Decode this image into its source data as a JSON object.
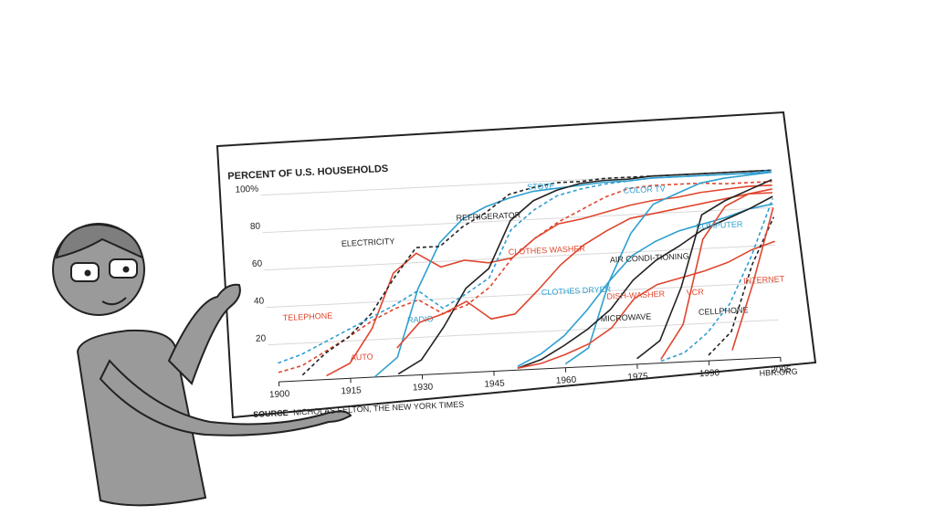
{
  "chart_data": {
    "type": "line",
    "title": "PERCENT OF U.S. HOUSEHOLDS",
    "source_label": "SOURCE",
    "source": "NICHOLAS FELTON, THE NEW YORK TIMES",
    "credit": "HBR.ORG",
    "x": [
      1900,
      1905,
      1910,
      1915,
      1920,
      1925,
      1930,
      1935,
      1940,
      1945,
      1950,
      1955,
      1960,
      1965,
      1970,
      1975,
      1980,
      1985,
      1990,
      1995,
      2000,
      2005
    ],
    "xlim": [
      1900,
      2005
    ],
    "xticks": [
      1900,
      1915,
      1930,
      1945,
      1960,
      1975,
      1990,
      2005
    ],
    "ylim": [
      0,
      100
    ],
    "yticks": [
      20,
      40,
      60,
      80,
      {
        "value": 100,
        "label": "100%"
      }
    ],
    "grid": true,
    "series": [
      {
        "name": "TELEPHONE",
        "color": "#e0462e",
        "dash": true,
        "values": [
          5,
          8,
          15,
          22,
          30,
          36,
          40,
          32,
          36,
          45,
          60,
          70,
          78,
          84,
          90,
          94,
          95,
          95,
          95,
          94,
          94,
          94
        ]
      },
      {
        "name": "AUTO",
        "color": "#e0462e",
        "dash": false,
        "values": [
          null,
          null,
          2,
          8,
          26,
          55,
          65,
          57,
          60,
          58,
          60,
          70,
          77,
          79,
          82,
          85,
          87,
          88,
          90,
          91,
          92,
          92
        ]
      },
      {
        "name": "RADIO",
        "color": "#2f9fd0",
        "dash": false,
        "values": [
          null,
          null,
          null,
          null,
          0,
          10,
          46,
          70,
          82,
          88,
          92,
          95,
          96,
          97,
          98,
          98,
          99,
          99,
          99,
          99,
          99,
          99
        ]
      },
      {
        "name": "ELECTRICITY",
        "color": "#222222",
        "dash": true,
        "values": [
          null,
          3,
          14,
          22,
          34,
          52,
          68,
          68,
          78,
          85,
          94,
          97,
          99,
          99,
          100,
          100,
          100,
          100,
          100,
          100,
          100,
          100
        ]
      },
      {
        "name": "REFRIGERATOR",
        "color": "#222222",
        "dash": false,
        "values": [
          null,
          null,
          null,
          null,
          null,
          1,
          8,
          25,
          45,
          55,
          80,
          90,
          95,
          98,
          99,
          99,
          100,
          100,
          100,
          100,
          100,
          100
        ]
      },
      {
        "name": "STOVE",
        "color": "#2f9fd0",
        "dash": true,
        "values": [
          10,
          14,
          20,
          26,
          32,
          38,
          45,
          35,
          42,
          50,
          75,
          85,
          92,
          95,
          97,
          98,
          99,
          99,
          99,
          99,
          99,
          100
        ]
      },
      {
        "name": "CLOTHES WASHER",
        "color": "#e0462e",
        "dash": false,
        "values": [
          null,
          null,
          null,
          null,
          null,
          15,
          28,
          32,
          38,
          28,
          30,
          42,
          55,
          65,
          72,
          78,
          80,
          82,
          84,
          86,
          88,
          88
        ]
      },
      {
        "name": "CLOTHES DRYER",
        "color": "#2f9fd0",
        "dash": false,
        "values": [
          null,
          null,
          null,
          null,
          null,
          null,
          null,
          null,
          null,
          null,
          2,
          8,
          17,
          30,
          45,
          58,
          65,
          70,
          73,
          76,
          80,
          82
        ]
      },
      {
        "name": "COLOR TV",
        "color": "#2f9fd0",
        "dash": false,
        "values": [
          null,
          null,
          null,
          null,
          null,
          null,
          null,
          null,
          null,
          null,
          null,
          null,
          2,
          10,
          45,
          70,
          85,
          90,
          95,
          97,
          98,
          99
        ]
      },
      {
        "name": "AIR CONDI-TIONING",
        "color": "#222222",
        "dash": false,
        "values": [
          null,
          null,
          null,
          null,
          null,
          null,
          null,
          null,
          null,
          null,
          1,
          5,
          12,
          20,
          30,
          45,
          55,
          62,
          70,
          75,
          80,
          86
        ]
      },
      {
        "name": "DISH-WASHER",
        "color": "#e0462e",
        "dash": false,
        "values": [
          null,
          null,
          null,
          null,
          null,
          null,
          null,
          null,
          null,
          null,
          1,
          3,
          7,
          12,
          20,
          35,
          42,
          45,
          48,
          52,
          58,
          62
        ]
      },
      {
        "name": "MICROWAVE",
        "color": "#222222",
        "dash": false,
        "values": [
          null,
          null,
          null,
          null,
          null,
          null,
          null,
          null,
          null,
          null,
          null,
          null,
          null,
          null,
          null,
          3,
          12,
          40,
          78,
          85,
          90,
          95
        ]
      },
      {
        "name": "VCR",
        "color": "#e0462e",
        "dash": false,
        "values": [
          null,
          null,
          null,
          null,
          null,
          null,
          null,
          null,
          null,
          null,
          null,
          null,
          null,
          null,
          null,
          null,
          2,
          20,
          65,
          82,
          88,
          90
        ]
      },
      {
        "name": "COMPUTER",
        "color": "#2f9fd0",
        "dash": true,
        "values": [
          null,
          null,
          null,
          null,
          null,
          null,
          null,
          null,
          null,
          null,
          null,
          null,
          null,
          null,
          null,
          null,
          1,
          5,
          15,
          30,
          55,
          85
        ]
      },
      {
        "name": "CELLPHONE",
        "color": "#222222",
        "dash": true,
        "values": [
          null,
          null,
          null,
          null,
          null,
          null,
          null,
          null,
          null,
          null,
          null,
          null,
          null,
          null,
          null,
          null,
          null,
          null,
          3,
          15,
          50,
          75
        ]
      },
      {
        "name": "INTERNET",
        "color": "#e0462e",
        "dash": false,
        "values": [
          null,
          null,
          null,
          null,
          null,
          null,
          null,
          null,
          null,
          null,
          null,
          null,
          null,
          null,
          null,
          null,
          null,
          null,
          null,
          5,
          40,
          80
        ]
      }
    ]
  }
}
